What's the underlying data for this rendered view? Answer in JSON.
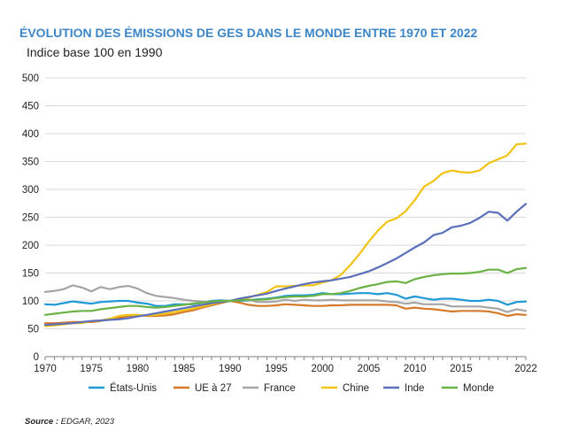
{
  "chart_data": {
    "type": "line",
    "title": "ÉVOLUTION DES ÉMISSIONS DE GES DANS LE MONDE ENTRE 1970 ET 2022",
    "subtitle": "Indice base 100 en 1990",
    "xlabel": "",
    "ylabel": "Indice base 100 en 1990",
    "xlim": [
      1970,
      2022
    ],
    "ylim": [
      0,
      500
    ],
    "x_ticks": [
      1970,
      1975,
      1980,
      1985,
      1990,
      1995,
      2000,
      2005,
      2010,
      2015,
      2022
    ],
    "y_ticks": [
      0,
      50,
      100,
      150,
      200,
      250,
      300,
      350,
      400,
      450,
      500
    ],
    "grid": true,
    "legend_position": "bottom",
    "x": [
      1970,
      1971,
      1972,
      1973,
      1974,
      1975,
      1976,
      1977,
      1978,
      1979,
      1980,
      1981,
      1982,
      1983,
      1984,
      1985,
      1986,
      1987,
      1988,
      1989,
      1990,
      1991,
      1992,
      1993,
      1994,
      1995,
      1996,
      1997,
      1998,
      1999,
      2000,
      2001,
      2002,
      2003,
      2004,
      2005,
      2006,
      2007,
      2008,
      2009,
      2010,
      2011,
      2012,
      2013,
      2014,
      2015,
      2016,
      2017,
      2018,
      2019,
      2020,
      2021,
      2022
    ],
    "series": [
      {
        "name": "États-Unis",
        "color": "#1f9ad6",
        "values": [
          94,
          93,
          96,
          99,
          97,
          95,
          98,
          99,
          100,
          100,
          97,
          95,
          91,
          91,
          94,
          94,
          94,
          97,
          100,
          101,
          100,
          100,
          101,
          103,
          104,
          106,
          109,
          110,
          110,
          111,
          114,
          112,
          112,
          113,
          114,
          114,
          112,
          114,
          111,
          104,
          108,
          105,
          102,
          104,
          104,
          102,
          100,
          100,
          102,
          100,
          93,
          98,
          99
        ]
      },
      {
        "name": "UE à 27",
        "color": "#d57a2a",
        "values": [
          60,
          60,
          61,
          62,
          62,
          62,
          64,
          68,
          70,
          73,
          75,
          73,
          73,
          74,
          76,
          80,
          83,
          88,
          92,
          96,
          100,
          97,
          93,
          91,
          91,
          92,
          94,
          93,
          92,
          91,
          91,
          92,
          92,
          93,
          93,
          93,
          93,
          93,
          92,
          86,
          88,
          86,
          85,
          83,
          81,
          82,
          82,
          82,
          81,
          78,
          73,
          76,
          75
        ]
      },
      {
        "name": "France",
        "color": "#a5a5a5",
        "values": [
          116,
          118,
          121,
          128,
          124,
          117,
          125,
          121,
          125,
          127,
          122,
          114,
          109,
          107,
          105,
          102,
          100,
          99,
          98,
          99,
          100,
          102,
          102,
          98,
          98,
          99,
          102,
          100,
          102,
          101,
          101,
          102,
          101,
          101,
          101,
          101,
          101,
          99,
          98,
          95,
          97,
          94,
          94,
          94,
          90,
          90,
          90,
          90,
          88,
          86,
          80,
          85,
          82
        ]
      },
      {
        "name": "Chine",
        "color": "#f2c314",
        "values": [
          55,
          56,
          58,
          60,
          60,
          64,
          65,
          68,
          73,
          75,
          75,
          74,
          75,
          77,
          80,
          83,
          86,
          90,
          94,
          98,
          100,
          102,
          106,
          111,
          116,
          126,
          126,
          127,
          128,
          128,
          133,
          137,
          147,
          164,
          184,
          206,
          226,
          242,
          248,
          261,
          281,
          305,
          315,
          329,
          334,
          331,
          330,
          334,
          347,
          354,
          361,
          381,
          382
        ]
      },
      {
        "name": "Inde",
        "color": "#5b6fbb",
        "values": [
          57,
          58,
          59,
          60,
          62,
          64,
          65,
          66,
          67,
          69,
          72,
          75,
          78,
          81,
          84,
          87,
          90,
          93,
          96,
          98,
          100,
          104,
          107,
          110,
          113,
          118,
          122,
          126,
          130,
          133,
          135,
          137,
          140,
          143,
          148,
          153,
          160,
          168,
          176,
          186,
          196,
          205,
          218,
          222,
          232,
          235,
          240,
          249,
          260,
          258,
          244,
          260,
          274
        ]
      },
      {
        "name": "Monde",
        "color": "#6ab246",
        "values": [
          75,
          77,
          79,
          81,
          82,
          82,
          85,
          87,
          89,
          91,
          91,
          89,
          88,
          89,
          91,
          93,
          95,
          97,
          99,
          100,
          100,
          101,
          102,
          102,
          103,
          105,
          107,
          108,
          108,
          109,
          112,
          112,
          114,
          118,
          123,
          127,
          130,
          134,
          135,
          132,
          139,
          143,
          146,
          148,
          149,
          149,
          150,
          152,
          156,
          156,
          150,
          157,
          159
        ]
      }
    ]
  },
  "source": {
    "label": "Source :",
    "text": "EDGAR, 2023"
  }
}
